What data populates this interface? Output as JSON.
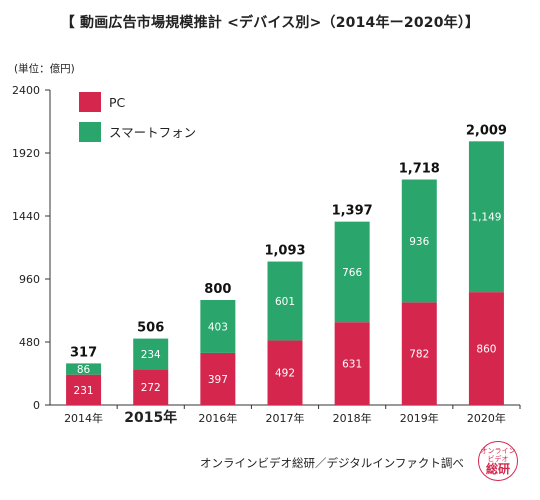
{
  "title": "【 動画広告市場規模推計 <デバイス別>（2014年ー2020年）】",
  "unit_label": "(単位：億円)",
  "source": "オンラインビデオ総研／デジタルインファクト調べ",
  "stamp": {
    "line1": "オンライン",
    "line2": "ビデオ",
    "line3": "総研"
  },
  "colors": {
    "pc": "#d5274e",
    "smartphone": "#2aa66d"
  },
  "chart_data": {
    "type": "bar",
    "stacked": true,
    "categories": [
      "2014年",
      "2015年",
      "2016年",
      "2017年",
      "2018年",
      "2019年",
      "2020年"
    ],
    "highlight_category": "2015年",
    "series": [
      {
        "name": "PC",
        "values": [
          231,
          272,
          397,
          492,
          631,
          782,
          860
        ],
        "color": "#d5274e"
      },
      {
        "name": "スマートフォン",
        "values": [
          86,
          234,
          403,
          601,
          766,
          936,
          1149
        ],
        "color": "#2aa66d"
      }
    ],
    "value_labels": [
      [
        "231",
        "272",
        "397",
        "492",
        "631",
        "782",
        "860"
      ],
      [
        "86",
        "234",
        "403",
        "601",
        "766",
        "936",
        "1,149"
      ]
    ],
    "totals": [
      "317",
      "506",
      "800",
      "1,093",
      "1,397",
      "1,718",
      "2,009"
    ],
    "ylim": [
      0,
      2400
    ],
    "yticks": [
      0,
      480,
      960,
      1440,
      1920,
      2400
    ],
    "ytick_labels": [
      "0",
      "480",
      "960",
      "1440",
      "1920",
      "2400"
    ],
    "legend_position": "top-left",
    "grid": false
  }
}
